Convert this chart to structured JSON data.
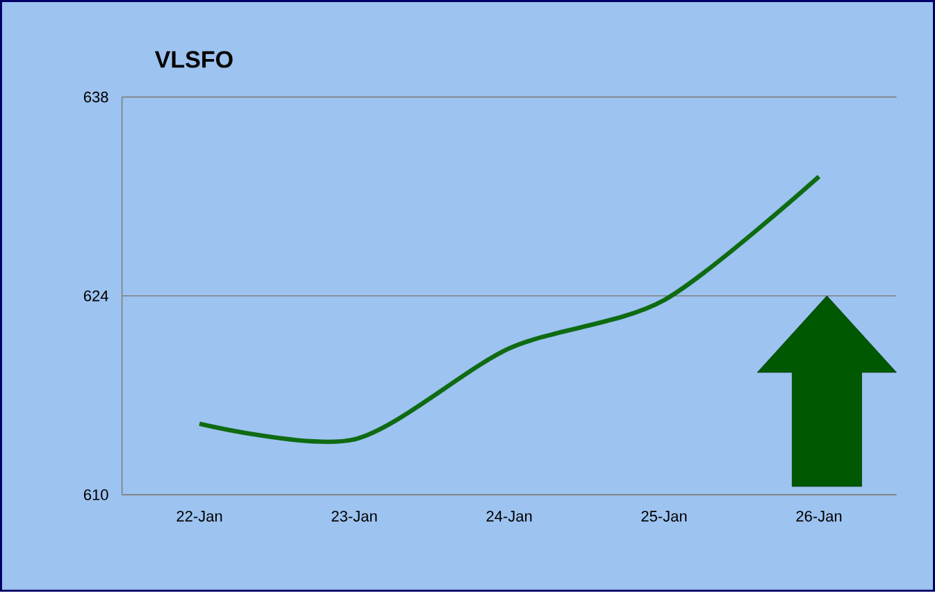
{
  "chart_data": {
    "type": "line",
    "title": "VLSFO",
    "categories": [
      "22-Jan",
      "23-Jan",
      "24-Jan",
      "25-Jan",
      "26-Jan"
    ],
    "values": [
      615.0,
      613.9,
      620.3,
      623.7,
      632.4
    ],
    "color": "#0f6b12",
    "ylim": [
      610,
      638
    ],
    "yticks": [
      610,
      624,
      638
    ],
    "grid": "y",
    "marker": "none",
    "line_style": "solid"
  }
}
